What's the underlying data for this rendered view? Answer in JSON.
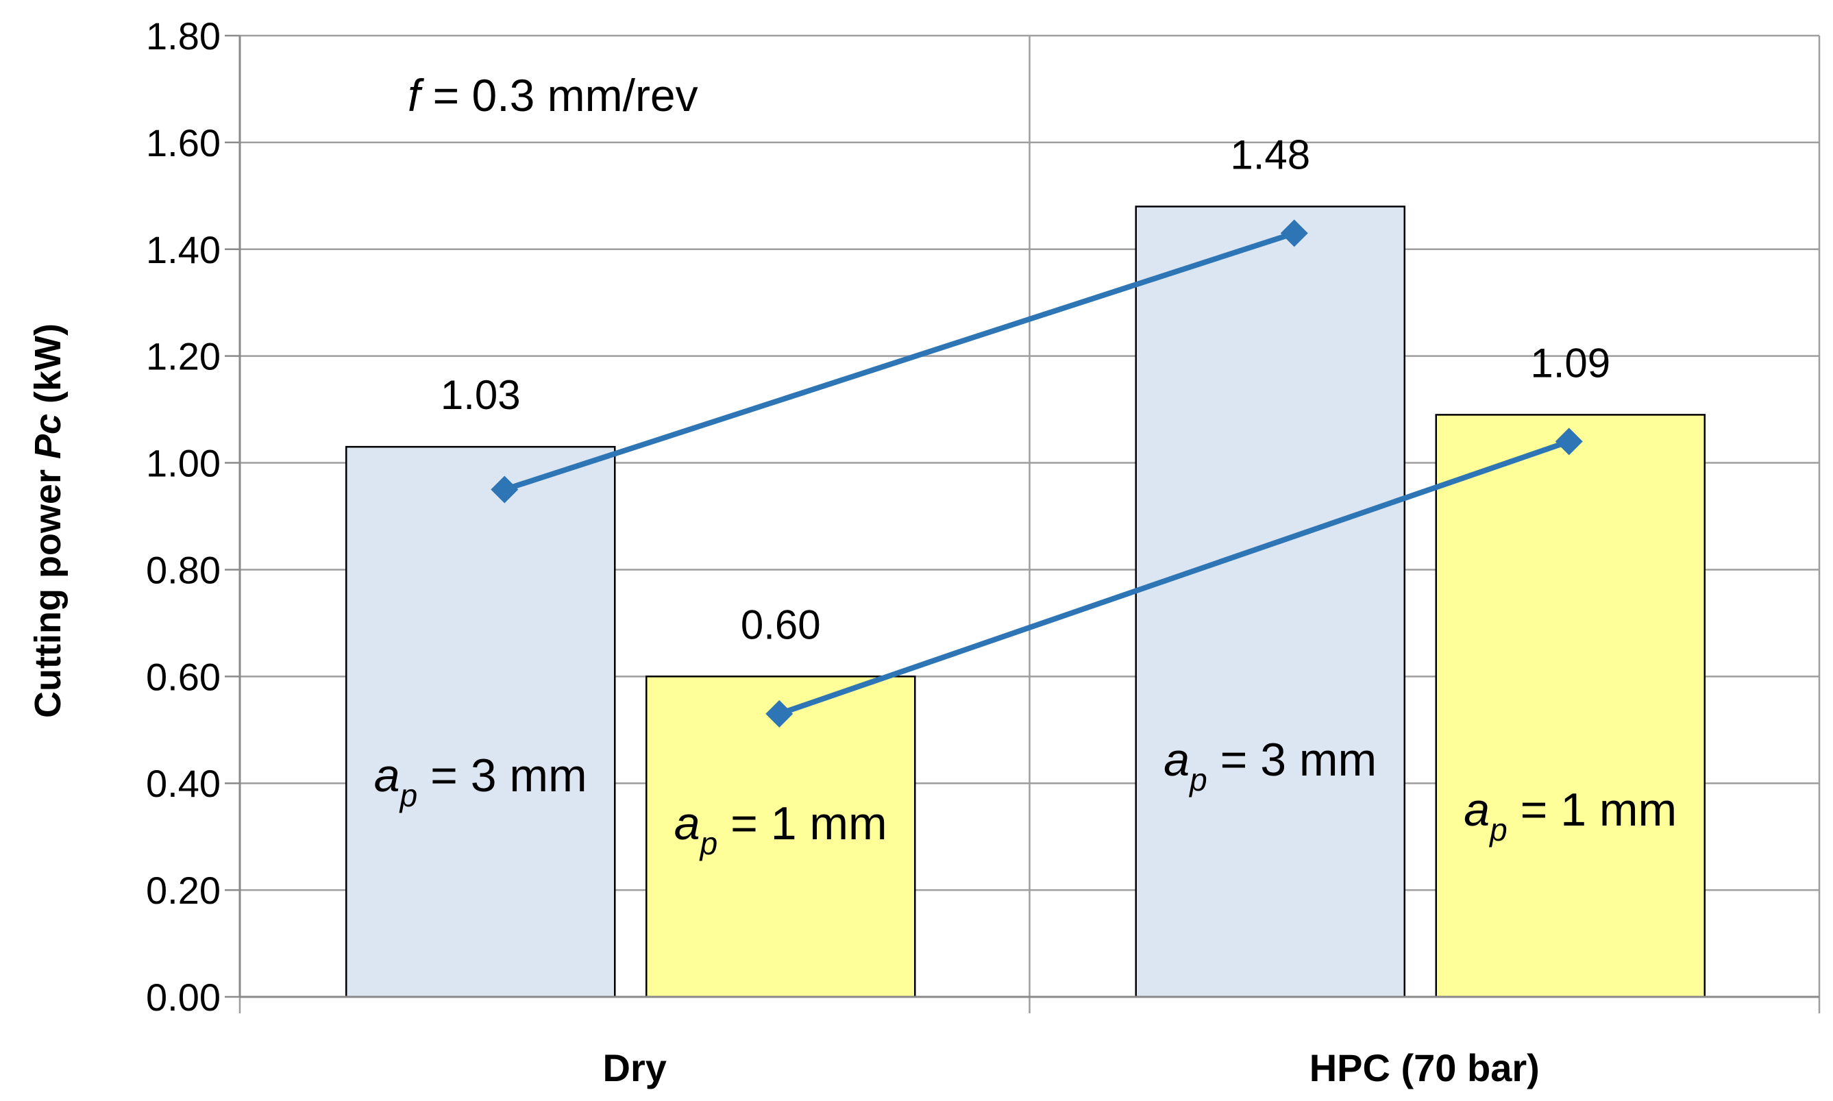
{
  "chart_data": {
    "type": "bar",
    "ylabel": "Cutting power ",
    "ylabel_var": "Pc",
    "ylabel_unit": " (kW)",
    "ylim": [
      0,
      1.8
    ],
    "yticks": [
      "0.00",
      "0.20",
      "0.40",
      "0.60",
      "0.80",
      "1.00",
      "1.20",
      "1.40",
      "1.60",
      "1.80"
    ],
    "categories": [
      "Dry",
      "HPC (70 bar)"
    ],
    "grid": true,
    "annotation": {
      "italic": "f",
      "rest": " = 0.3 mm/rev"
    },
    "series": [
      {
        "sym": "a",
        "sub": "p",
        "rest": " = 3 mm",
        "color": "#dce6f2",
        "values": [
          1.03,
          1.48
        ],
        "labels": [
          "1.03",
          "1.48"
        ],
        "line_values": [
          0.95,
          1.43
        ]
      },
      {
        "sym": "a",
        "sub": "p",
        "rest": " = 1 mm",
        "color": "#ffff99",
        "values": [
          0.6,
          1.09
        ],
        "labels": [
          "0.60",
          "1.09"
        ],
        "line_values": [
          0.53,
          1.04
        ]
      }
    ],
    "line_color": "#2e75b6"
  }
}
